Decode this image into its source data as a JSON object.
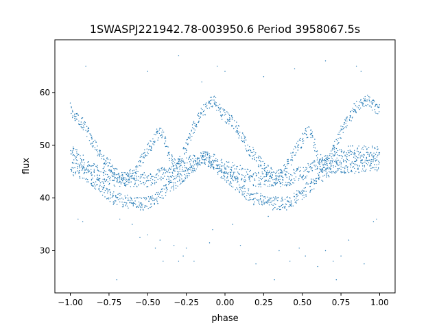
{
  "chart_data": {
    "type": "scatter",
    "title": "1SWASPJ221942.78-003950.6 Period 3958067.5s",
    "xlabel": "phase",
    "ylabel": "flux",
    "xlim": [
      -1.1,
      1.1
    ],
    "ylim": [
      22,
      70
    ],
    "xticks": [
      -1.0,
      -0.75,
      -0.5,
      -0.25,
      0.0,
      0.25,
      0.5,
      0.75,
      1.0
    ],
    "xtick_labels": [
      "−1.00",
      "−0.75",
      "−0.50",
      "−0.25",
      "0.00",
      "0.25",
      "0.50",
      "0.75",
      "1.00"
    ],
    "yticks": [
      30,
      40,
      50,
      60
    ],
    "ytick_labels": [
      "30",
      "40",
      "50",
      "60"
    ],
    "grid": false,
    "legend": "none",
    "marker_color": "#1f77b4",
    "series": [
      {
        "points_note": "phase-folded light curve, repeated over phase -1 to 1",
        "x": [
          -1.0,
          -0.98,
          -0.96,
          -0.94,
          -0.92,
          -0.9,
          -0.88,
          -0.86,
          -0.84,
          -0.82,
          -0.8,
          -0.78,
          -0.76,
          -0.74,
          -0.72,
          -0.7,
          -0.68,
          -0.66,
          -0.64,
          -0.62,
          -0.6,
          -0.58,
          -0.56,
          -0.54,
          -0.52,
          -0.5,
          -0.48,
          -0.46,
          -0.44,
          -0.42,
          -0.4,
          -0.38,
          -0.36,
          -0.34,
          -0.32,
          -0.3,
          -0.28,
          -0.26,
          -0.24,
          -0.22,
          -0.2,
          -0.18,
          -0.16,
          -0.14,
          -0.12,
          -0.1,
          -0.08,
          -0.06,
          -0.04,
          -0.02,
          0.0,
          0.02,
          0.04,
          0.06,
          0.08,
          0.1,
          0.12,
          0.14,
          0.16,
          0.18,
          0.2,
          0.22,
          0.24,
          0.26,
          0.28,
          0.3,
          0.32,
          0.34,
          0.36,
          0.38,
          0.4,
          0.42,
          0.44,
          0.46,
          0.48,
          0.5,
          0.52,
          0.54,
          0.56,
          0.58,
          0.6,
          0.62,
          0.64,
          0.66,
          0.68,
          0.7,
          0.72,
          0.74,
          0.76,
          0.78,
          0.8,
          0.82,
          0.84,
          0.86,
          0.88,
          0.9,
          0.92,
          0.94,
          0.96,
          0.98,
          1.0
        ],
        "y_upper": [
          57.0,
          56.0,
          55.0,
          54.5,
          54.0,
          53.0,
          52.0,
          51.0,
          50.0,
          49.0,
          48.0,
          47.0,
          46.5,
          46.0,
          45.0,
          44.5,
          44.0,
          43.5,
          43.5,
          44.0,
          44.5,
          45.0,
          46.0,
          47.0,
          48.0,
          49.0,
          50.0,
          51.0,
          52.0,
          52.5,
          52.0,
          50.0,
          48.0,
          47.0,
          46.0,
          46.5,
          47.5,
          49.0,
          50.5,
          52.0,
          53.5,
          54.5,
          55.5,
          56.5,
          57.0,
          58.0,
          58.5,
          58.0,
          57.0,
          56.0,
          55.5,
          55.0,
          54.5,
          54.0,
          53.0,
          52.0,
          51.0,
          50.0,
          49.0,
          48.5,
          48.0,
          47.0,
          46.0,
          45.5,
          45.0,
          44.5,
          44.0,
          44.0,
          44.5,
          45.0,
          46.0,
          47.0,
          48.0,
          49.0,
          50.0,
          51.0,
          52.0,
          52.5,
          52.0,
          50.0,
          48.0,
          47.0,
          46.0,
          46.5,
          47.5,
          49.0,
          50.5,
          52.0,
          53.0,
          54.0,
          55.0,
          56.0,
          57.0,
          57.5,
          58.0,
          58.5,
          58.5,
          58.0,
          57.5,
          57.0,
          57.0
        ],
        "y_middle": [
          49.0,
          48.5,
          48.0,
          47.5,
          47.0,
          46.5,
          46.0,
          45.5,
          45.0,
          44.8,
          44.5,
          44.2,
          44.0,
          43.8,
          43.5,
          43.5,
          43.5,
          43.5,
          43.5,
          43.5,
          43.5,
          43.5,
          43.5,
          43.5,
          43.5,
          43.5,
          43.5,
          43.8,
          44.0,
          44.2,
          44.5,
          44.8,
          45.0,
          45.2,
          45.5,
          45.8,
          46.0,
          46.2,
          46.5,
          46.8,
          47.0,
          47.2,
          47.5,
          47.5,
          47.5,
          47.2,
          47.0,
          46.8,
          46.5,
          46.2,
          46.0,
          45.8,
          45.5,
          45.2,
          45.0,
          44.8,
          44.5,
          44.2,
          44.0,
          43.8,
          43.5,
          43.5,
          43.5,
          43.5,
          43.5,
          43.5,
          43.5,
          43.5,
          43.5,
          43.5,
          43.5,
          43.8,
          44.0,
          44.2,
          44.5,
          44.8,
          45.0,
          45.2,
          45.5,
          45.8,
          46.0,
          46.2,
          46.5,
          46.8,
          47.0,
          47.2,
          47.5,
          47.8,
          48.0,
          48.2,
          48.5,
          48.5,
          48.5,
          48.5,
          48.5,
          48.5,
          48.5,
          48.5,
          48.5,
          48.5,
          49.0
        ],
        "y_lower": [
          46.0,
          45.5,
          45.5,
          45.0,
          45.0,
          44.5,
          44.0,
          43.5,
          43.0,
          42.5,
          42.0,
          41.5,
          41.0,
          40.5,
          40.0,
          40.0,
          40.0,
          39.5,
          39.5,
          39.0,
          39.0,
          39.0,
          39.0,
          39.0,
          39.0,
          39.0,
          39.0,
          39.5,
          40.0,
          40.5,
          41.0,
          41.5,
          42.0,
          42.5,
          43.0,
          43.5,
          44.0,
          44.5,
          45.0,
          45.5,
          46.0,
          46.5,
          47.0,
          47.5,
          47.5,
          47.0,
          46.5,
          46.0,
          45.5,
          45.0,
          44.5,
          44.0,
          43.5,
          43.0,
          42.5,
          42.0,
          41.5,
          41.0,
          40.5,
          40.0,
          40.0,
          40.0,
          39.5,
          39.5,
          39.0,
          39.0,
          39.0,
          39.0,
          39.0,
          39.0,
          39.0,
          39.0,
          39.5,
          40.0,
          40.5,
          41.0,
          41.5,
          42.0,
          42.5,
          43.0,
          43.5,
          44.0,
          44.5,
          45.0,
          45.5,
          46.0,
          46.0,
          46.0,
          46.0,
          46.0,
          46.0,
          46.0,
          46.0,
          46.0,
          46.0,
          46.0,
          46.0,
          46.0,
          46.0,
          46.0,
          46.0
        ],
        "outliers": [
          [
            -0.95,
            36.0
          ],
          [
            -0.92,
            35.5
          ],
          [
            -0.7,
            24.5
          ],
          [
            -0.68,
            36.0
          ],
          [
            -0.6,
            35.0
          ],
          [
            -0.55,
            32.5
          ],
          [
            -0.5,
            33.0
          ],
          [
            -0.45,
            30.5
          ],
          [
            -0.42,
            32.0
          ],
          [
            -0.4,
            28.0
          ],
          [
            -0.33,
            31.0
          ],
          [
            -0.3,
            28.0
          ],
          [
            -0.27,
            29.0
          ],
          [
            -0.25,
            30.5
          ],
          [
            -0.2,
            28.0
          ],
          [
            -0.1,
            31.5
          ],
          [
            -0.08,
            34.0
          ],
          [
            0.05,
            35.0
          ],
          [
            0.1,
            31.0
          ],
          [
            0.2,
            27.5
          ],
          [
            0.28,
            36.5
          ],
          [
            0.32,
            24.5
          ],
          [
            0.35,
            30.0
          ],
          [
            0.42,
            28.0
          ],
          [
            0.48,
            30.5
          ],
          [
            0.52,
            29.0
          ],
          [
            0.6,
            27.0
          ],
          [
            0.65,
            30.0
          ],
          [
            0.7,
            28.0
          ],
          [
            0.72,
            24.5
          ],
          [
            0.75,
            29.0
          ],
          [
            0.8,
            32.0
          ],
          [
            0.9,
            27.5
          ],
          [
            0.96,
            35.5
          ],
          [
            0.98,
            36.0
          ],
          [
            -0.3,
            67.0
          ],
          [
            -0.05,
            65.0
          ],
          [
            0.0,
            64.0
          ],
          [
            -0.15,
            62.0
          ],
          [
            0.25,
            63.0
          ],
          [
            0.45,
            64.5
          ],
          [
            0.85,
            65.0
          ],
          [
            0.88,
            64.0
          ],
          [
            -0.9,
            65.0
          ],
          [
            -0.5,
            64.0
          ],
          [
            0.65,
            66.0
          ]
        ]
      }
    ]
  }
}
